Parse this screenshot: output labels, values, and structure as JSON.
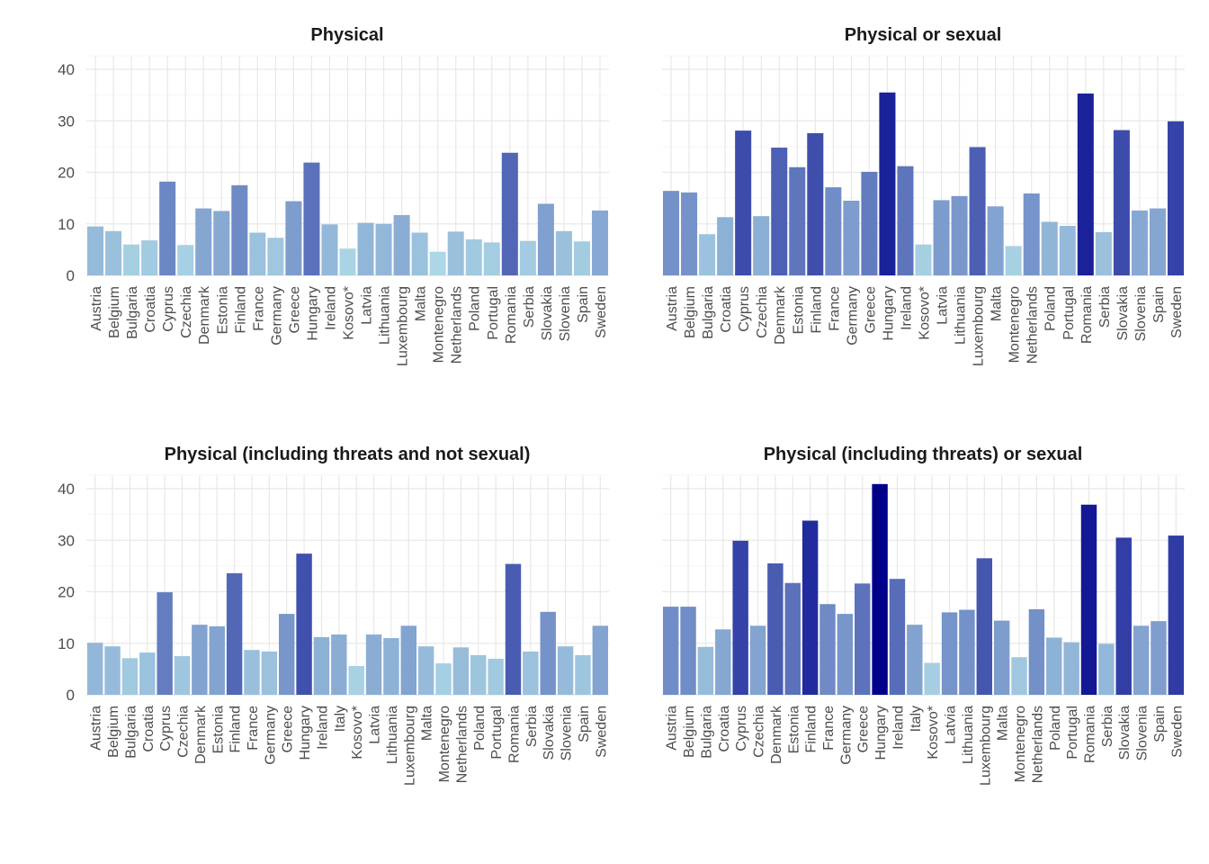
{
  "chart_data": [
    {
      "type": "bar",
      "title": "Physical",
      "ylim": [
        0,
        40
      ],
      "yticks": [
        0,
        10,
        20,
        30,
        40
      ],
      "grid": true,
      "legend": "none",
      "categories": [
        "Austria",
        "Belgium",
        "Bulgaria",
        "Croatia",
        "Cyprus",
        "Czechia",
        "Denmark",
        "Estonia",
        "Finland",
        "France",
        "Germany",
        "Greece",
        "Hungary",
        "Ireland",
        "Kosovo*",
        "Latvia",
        "Lithuania",
        "Luxembourg",
        "Malta",
        "Montenegro",
        "Netherlands",
        "Poland",
        "Portugal",
        "Romania",
        "Serbia",
        "Slovakia",
        "Slovenia",
        "Spain",
        "Sweden"
      ],
      "values": [
        9.5,
        8.6,
        6.0,
        6.8,
        18.2,
        5.9,
        13.0,
        12.5,
        17.5,
        8.3,
        7.3,
        14.4,
        21.9,
        9.9,
        5.2,
        10.2,
        10.0,
        11.7,
        8.3,
        4.6,
        8.5,
        7.0,
        6.4,
        23.8,
        6.7,
        13.9,
        8.6,
        6.6,
        12.6
      ]
    },
    {
      "type": "bar",
      "title": "Physical or sexual",
      "ylim": [
        0,
        40
      ],
      "yticks": [
        0,
        10,
        20,
        30,
        40
      ],
      "grid": true,
      "legend": "none",
      "categories": [
        "Austria",
        "Belgium",
        "Bulgaria",
        "Croatia",
        "Cyprus",
        "Czechia",
        "Denmark",
        "Estonia",
        "Finland",
        "France",
        "Germany",
        "Greece",
        "Hungary",
        "Ireland",
        "Kosovo*",
        "Latvia",
        "Lithuania",
        "Luxembourg",
        "Malta",
        "Montenegro",
        "Netherlands",
        "Poland",
        "Portugal",
        "Romania",
        "Serbia",
        "Slovakia",
        "Slovenia",
        "Spain",
        "Sweden"
      ],
      "values": [
        16.4,
        16.1,
        8.0,
        11.3,
        28.1,
        11.5,
        24.8,
        21.0,
        27.6,
        17.1,
        14.5,
        20.1,
        35.5,
        21.2,
        6.0,
        14.6,
        15.4,
        24.9,
        13.4,
        5.7,
        15.9,
        10.4,
        9.6,
        35.3,
        8.4,
        28.2,
        12.6,
        13.0,
        29.9
      ]
    },
    {
      "type": "bar",
      "title": "Physical (including threats and not sexual)",
      "ylim": [
        0,
        40
      ],
      "yticks": [
        0,
        10,
        20,
        30,
        40
      ],
      "grid": true,
      "legend": "none",
      "categories": [
        "Austria",
        "Belgium",
        "Bulgaria",
        "Croatia",
        "Cyprus",
        "Czechia",
        "Denmark",
        "Estonia",
        "Finland",
        "France",
        "Germany",
        "Greece",
        "Hungary",
        "Ireland",
        "Italy",
        "Kosovo*",
        "Latvia",
        "Lithuania",
        "Luxembourg",
        "Malta",
        "Montenegro",
        "Netherlands",
        "Poland",
        "Portugal",
        "Romania",
        "Serbia",
        "Slovakia",
        "Slovenia",
        "Spain",
        "Sweden"
      ],
      "values": [
        10.1,
        9.4,
        7.1,
        8.2,
        19.9,
        7.5,
        13.6,
        13.3,
        23.6,
        8.7,
        8.4,
        15.7,
        27.4,
        11.2,
        11.7,
        5.6,
        11.7,
        11.0,
        13.4,
        9.4,
        6.1,
        9.2,
        7.7,
        7.0,
        25.4,
        8.4,
        16.1,
        9.4,
        7.7,
        13.4
      ]
    },
    {
      "type": "bar",
      "title": "Physical (including threats) or sexual",
      "ylim": [
        0,
        40
      ],
      "yticks": [
        0,
        10,
        20,
        30,
        40
      ],
      "grid": true,
      "legend": "none",
      "categories": [
        "Austria",
        "Belgium",
        "Bulgaria",
        "Croatia",
        "Cyprus",
        "Czechia",
        "Denmark",
        "Estonia",
        "Finland",
        "France",
        "Germany",
        "Greece",
        "Hungary",
        "Ireland",
        "Italy",
        "Kosovo*",
        "Latvia",
        "Lithuania",
        "Luxembourg",
        "Malta",
        "Montenegro",
        "Netherlands",
        "Poland",
        "Portugal",
        "Romania",
        "Serbia",
        "Slovakia",
        "Slovenia",
        "Spain",
        "Sweden"
      ],
      "values": [
        17.1,
        17.1,
        9.3,
        12.7,
        29.9,
        13.4,
        25.5,
        21.7,
        33.8,
        17.6,
        15.7,
        21.6,
        40.9,
        22.5,
        13.6,
        6.2,
        16.0,
        16.5,
        26.5,
        14.4,
        7.3,
        16.6,
        11.1,
        10.2,
        36.9,
        9.9,
        30.5,
        13.4,
        14.3,
        30.9
      ]
    }
  ],
  "colors": {
    "low": "#add8e6",
    "high": "#00008b",
    "grid": "#ebebeb",
    "text": "#4d4d4d",
    "title": "#1a1a1a"
  }
}
